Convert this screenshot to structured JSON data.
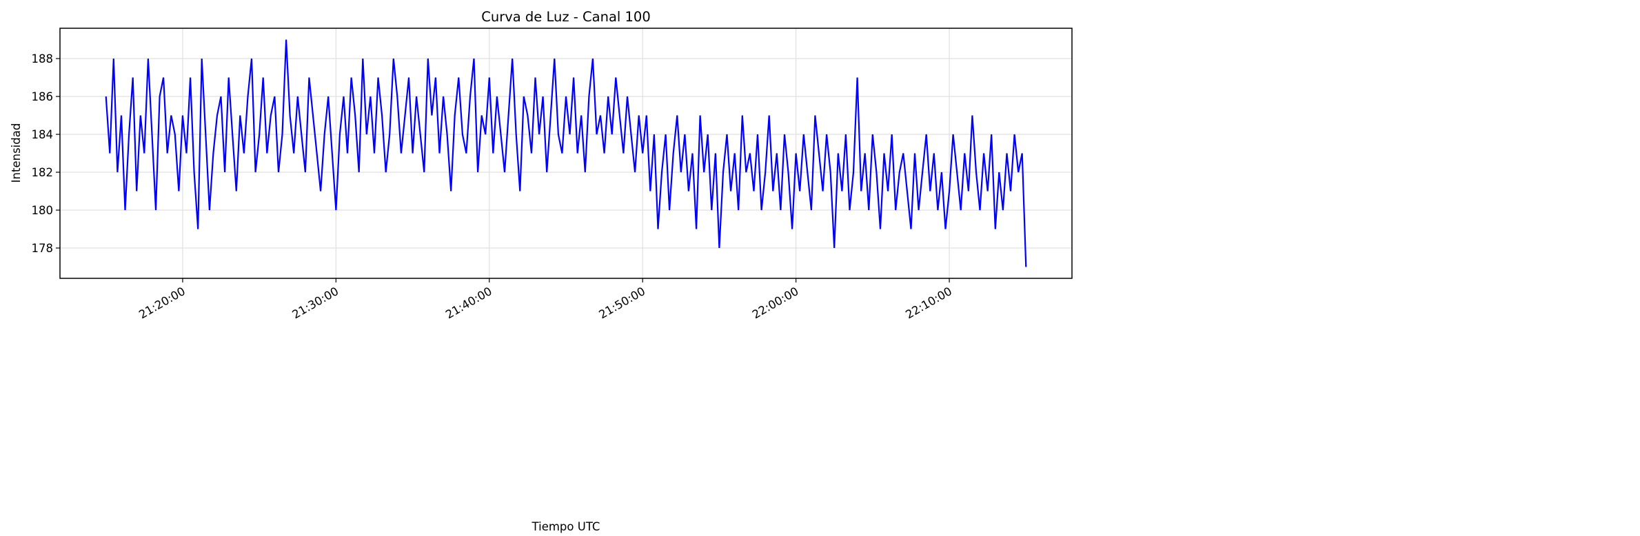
{
  "chart_data": {
    "type": "line",
    "title": "Curva de Luz - Canal 100",
    "xlabel": "Tiempo UTC",
    "ylabel": "Intensidad",
    "x_start": "21:15:00",
    "x_step_seconds": 15,
    "xlim": [
      "21:12:00",
      "22:18:00"
    ],
    "ylim": [
      176.4,
      189.6
    ],
    "grid": true,
    "line_color": "#0000ff",
    "x_ticks": [
      {
        "time": "21:20:00",
        "label": "21:20:00"
      },
      {
        "time": "21:30:00",
        "label": "21:30:00"
      },
      {
        "time": "21:40:00",
        "label": "21:40:00"
      },
      {
        "time": "21:50:00",
        "label": "21:50:00"
      },
      {
        "time": "22:00:00",
        "label": "22:00:00"
      },
      {
        "time": "22:10:00",
        "label": "22:10:00"
      }
    ],
    "y_ticks": [
      {
        "value": 178,
        "label": "178"
      },
      {
        "value": 180,
        "label": "180"
      },
      {
        "value": 182,
        "label": "182"
      },
      {
        "value": 184,
        "label": "184"
      },
      {
        "value": 186,
        "label": "186"
      },
      {
        "value": 188,
        "label": "188"
      }
    ],
    "series": [
      {
        "name": "Canal 100",
        "values": [
          186,
          183,
          188,
          182,
          185,
          180,
          184,
          187,
          181,
          185,
          183,
          188,
          184,
          180,
          186,
          187,
          183,
          185,
          184,
          181,
          185,
          183,
          187,
          182,
          179,
          188,
          184,
          180,
          183,
          185,
          186,
          182,
          187,
          184,
          181,
          185,
          183,
          186,
          188,
          182,
          184,
          187,
          183,
          185,
          186,
          182,
          184,
          189,
          185,
          183,
          186,
          184,
          182,
          187,
          185,
          183,
          181,
          184,
          186,
          183,
          180,
          184,
          186,
          183,
          187,
          185,
          182,
          188,
          184,
          186,
          183,
          187,
          185,
          182,
          184,
          188,
          186,
          183,
          185,
          187,
          183,
          186,
          184,
          182,
          188,
          185,
          187,
          183,
          186,
          184,
          181,
          185,
          187,
          184,
          183,
          186,
          188,
          182,
          185,
          184,
          187,
          183,
          186,
          184,
          182,
          185,
          188,
          184,
          181,
          186,
          185,
          183,
          187,
          184,
          186,
          182,
          185,
          188,
          184,
          183,
          186,
          184,
          187,
          183,
          185,
          182,
          186,
          188,
          184,
          185,
          183,
          186,
          184,
          187,
          185,
          183,
          186,
          184,
          182,
          185,
          183,
          185,
          181,
          184,
          179,
          182,
          184,
          180,
          183,
          185,
          182,
          184,
          181,
          183,
          179,
          185,
          182,
          184,
          180,
          183,
          178,
          182,
          184,
          181,
          183,
          180,
          185,
          182,
          183,
          181,
          184,
          180,
          182,
          185,
          181,
          183,
          180,
          184,
          182,
          179,
          183,
          181,
          184,
          182,
          180,
          185,
          183,
          181,
          184,
          182,
          178,
          183,
          181,
          184,
          180,
          182,
          187,
          181,
          183,
          180,
          184,
          182,
          179,
          183,
          181,
          184,
          180,
          182,
          183,
          181,
          179,
          183,
          180,
          182,
          184,
          181,
          183,
          180,
          182,
          179,
          181,
          184,
          182,
          180,
          183,
          181,
          185,
          182,
          180,
          183,
          181,
          184,
          179,
          182,
          180,
          183,
          181,
          184,
          182,
          183,
          177
        ]
      }
    ]
  }
}
